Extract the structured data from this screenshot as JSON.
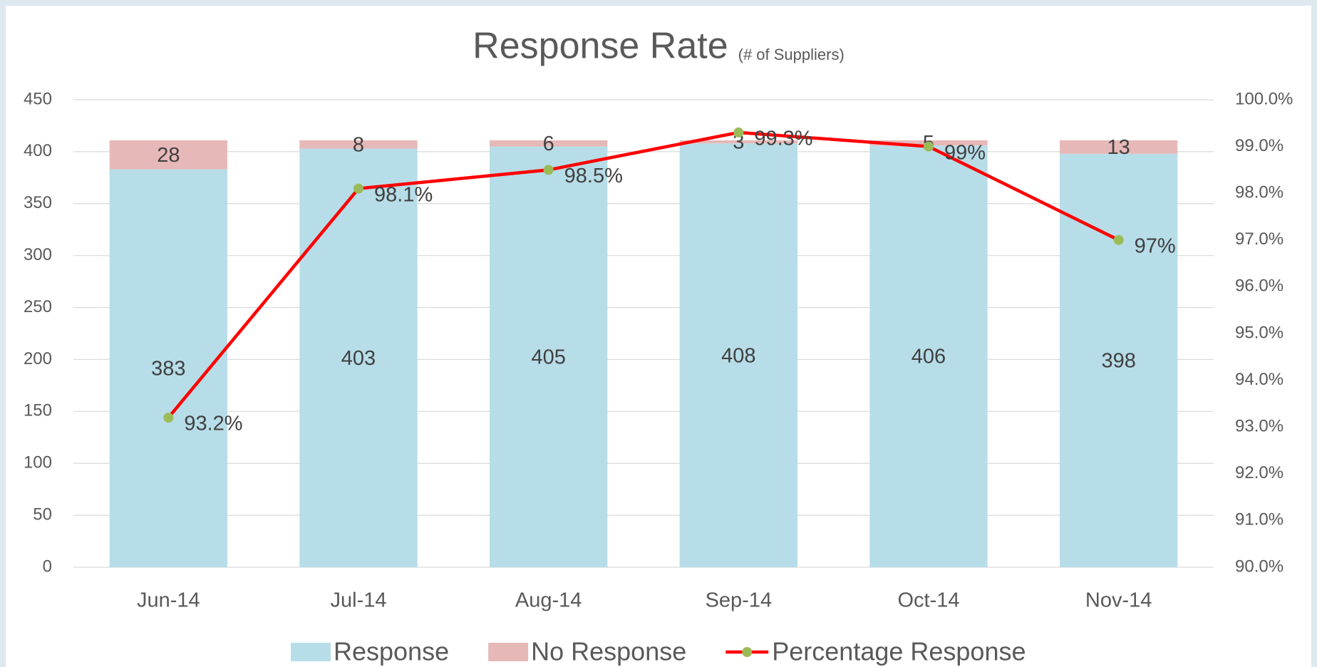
{
  "chart_data": {
    "type": "bar",
    "stacked": true,
    "title": "Response Rate",
    "subtitle": "(# of Suppliers)",
    "categories": [
      "Jun-14",
      "Jul-14",
      "Aug-14",
      "Sep-14",
      "Oct-14",
      "Nov-14"
    ],
    "series": [
      {
        "name": "Response",
        "color": "#b7dde8",
        "values": [
          383,
          403,
          405,
          408,
          406,
          398
        ]
      },
      {
        "name": "No Response",
        "color": "#e6b9b8",
        "values": [
          28,
          8,
          6,
          3,
          5,
          13
        ]
      },
      {
        "name": "Percentage Response",
        "type": "line",
        "axis": "y2",
        "color": "#ff0000",
        "marker_color": "#9bbb59",
        "values": [
          93.2,
          98.1,
          98.5,
          99.3,
          99,
          97
        ],
        "value_labels": [
          "93.2%",
          "98.1%",
          "98.5%",
          "99.3%",
          "99%",
          "97%"
        ]
      }
    ],
    "ylim": [
      0,
      450
    ],
    "yticks": [
      0,
      50,
      100,
      150,
      200,
      250,
      300,
      350,
      400,
      450
    ],
    "y2lim": [
      90,
      100
    ],
    "y2ticks": [
      {
        "value": 90,
        "label": "90.0%"
      },
      {
        "value": 91,
        "label": "91.0%"
      },
      {
        "value": 92,
        "label": "92.0%"
      },
      {
        "value": 93,
        "label": "93.0%"
      },
      {
        "value": 94,
        "label": "94.0%"
      },
      {
        "value": 95,
        "label": "95.0%"
      },
      {
        "value": 96,
        "label": "96.0%"
      },
      {
        "value": 97,
        "label": "97.0%"
      },
      {
        "value": 98,
        "label": "98.0%"
      },
      {
        "value": 99,
        "label": "99.0%"
      },
      {
        "value": 100,
        "label": "100.0%"
      }
    ],
    "grid": true,
    "legend": "bottom"
  }
}
